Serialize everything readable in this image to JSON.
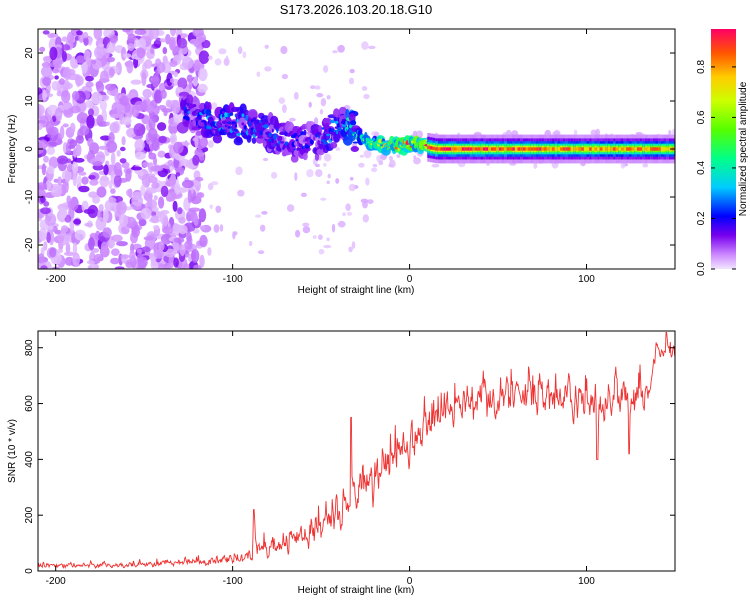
{
  "chart_data": [
    {
      "type": "heatmap",
      "title": "S173.2026.103.20.18.G10",
      "xlabel": "Height of straight line (km)",
      "ylabel": "Frequency (Hz)",
      "xlim": [
        -210,
        150
      ],
      "ylim": [
        -25,
        25
      ],
      "xticks": [
        -200,
        -100,
        0,
        100
      ],
      "yticks": [
        -20,
        -10,
        0,
        10,
        20
      ],
      "colorbar": {
        "label": "Normalized spectral amplitude",
        "range": [
          0,
          0.95
        ],
        "ticks": [
          "0.0",
          "0.2",
          "0.4",
          "0.6",
          "0.8"
        ],
        "tick_values": [
          0.0,
          0.2,
          0.4,
          0.6,
          0.8
        ]
      },
      "ridge": {
        "description_points": [
          {
            "x": -125,
            "y": 7.5,
            "amp": 0.25
          },
          {
            "x": -110,
            "y": 5.5,
            "amp": 0.3
          },
          {
            "x": -95,
            "y": 5.0,
            "amp": 0.28
          },
          {
            "x": -80,
            "y": 3.5,
            "amp": 0.25
          },
          {
            "x": -65,
            "y": 1.0,
            "amp": 0.2
          },
          {
            "x": -50,
            "y": 2.0,
            "amp": 0.22
          },
          {
            "x": -38,
            "y": 6.0,
            "amp": 0.3
          },
          {
            "x": -25,
            "y": 1.5,
            "amp": 0.55
          },
          {
            "x": -10,
            "y": 0.5,
            "amp": 0.75
          },
          {
            "x": 0,
            "y": 1.0,
            "amp": 0.8
          },
          {
            "x": 15,
            "y": 0.0,
            "amp": 0.9
          },
          {
            "x": 60,
            "y": 0.0,
            "amp": 0.85
          },
          {
            "x": 100,
            "y": 0.0,
            "amp": 0.8
          },
          {
            "x": 150,
            "y": 0.0,
            "amp": 0.8
          }
        ]
      }
    },
    {
      "type": "line",
      "title": "",
      "xlabel": "Height of straight line (km)",
      "ylabel": "SNR (10 * v/v)",
      "xlim": [
        -210,
        150
      ],
      "ylim": [
        0,
        860
      ],
      "xticks": [
        -200,
        -100,
        0,
        100
      ],
      "yticks": [
        0,
        200,
        400,
        600,
        800
      ],
      "series": [
        {
          "name": "SNR",
          "color": "#ee3333",
          "envelope": {
            "x": [
              -210,
              -160,
              -130,
              -110,
              -100,
              -90,
              -80,
              -70,
              -60,
              -50,
              -40,
              -30,
              -20,
              -10,
              0,
              10,
              20,
              30,
              40,
              60,
              80,
              100,
              120,
              135,
              138,
              150
            ],
            "base": [
              15,
              20,
              25,
              30,
              40,
              60,
              70,
              80,
              100,
              140,
              200,
              260,
              320,
              380,
              440,
              500,
              540,
              570,
              590,
              600,
              590,
              580,
              590,
              600,
              770,
              770
            ],
            "spread": [
              15,
              18,
              20,
              25,
              30,
              60,
              60,
              70,
              80,
              110,
              140,
              150,
              150,
              140,
              130,
              130,
              130,
              140,
              140,
              120,
              110,
              120,
              110,
              100,
              60,
              60
            ]
          },
          "notable_points": [
            {
              "x": -88,
              "y": 220
            },
            {
              "x": -33,
              "y": 550
            },
            {
              "x": 106,
              "y": 400
            },
            {
              "x": 124,
              "y": 420
            },
            {
              "x": 145,
              "y": 855
            }
          ]
        }
      ]
    }
  ]
}
